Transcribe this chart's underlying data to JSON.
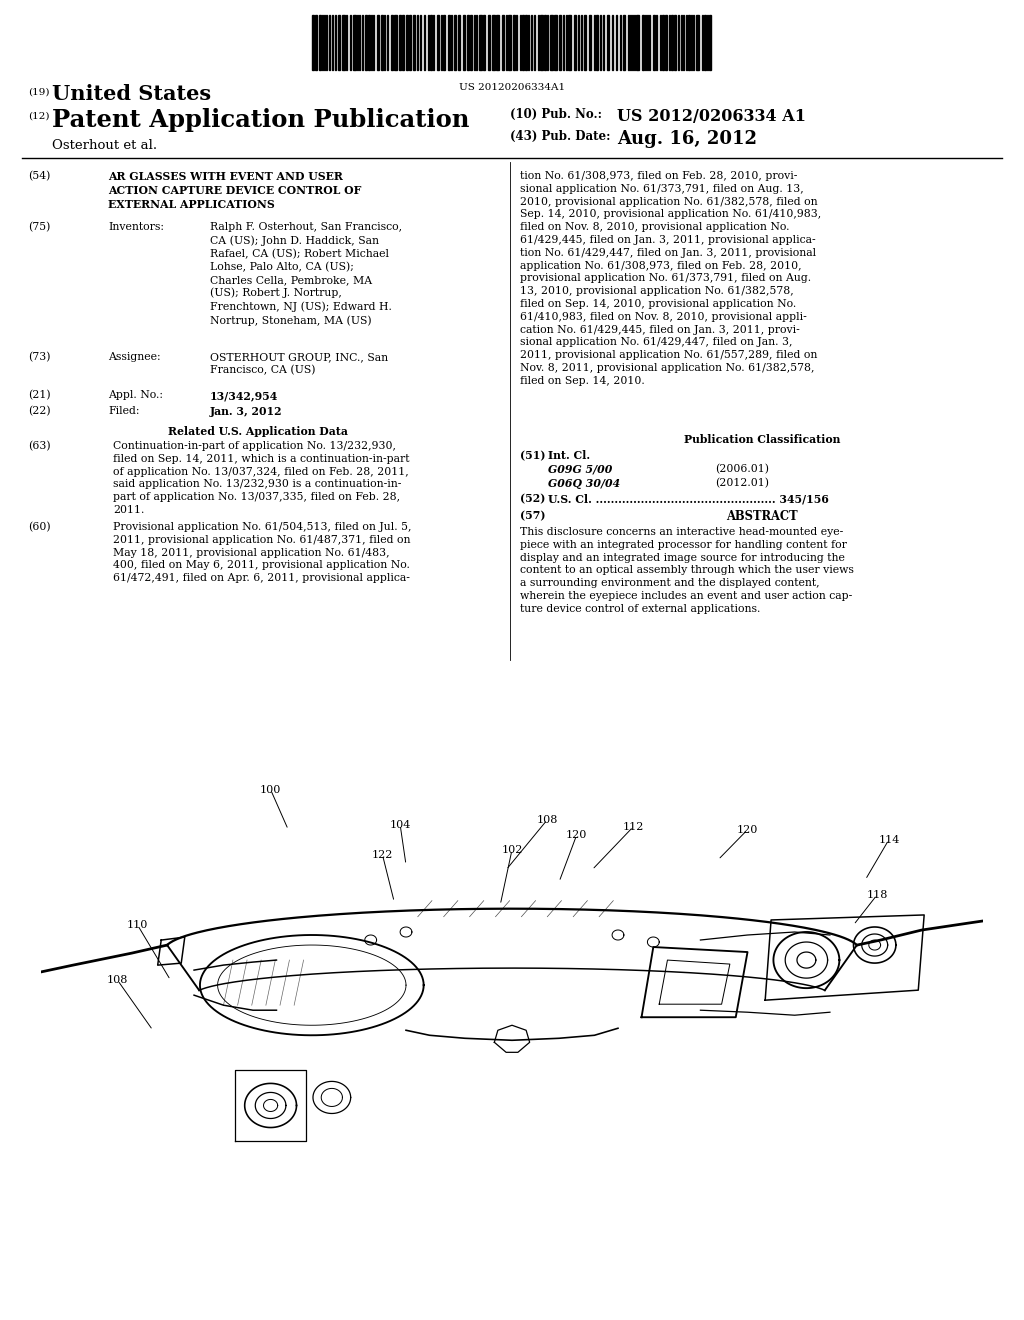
{
  "bg_color": "#ffffff",
  "barcode_text": "US 20120206334A1",
  "header_19_text": "United States",
  "header_12_text": "Patent Application Publication",
  "header_10_label": "(10) Pub. No.:",
  "header_10_value": "US 2012/0206334 A1",
  "header_43_label": "(43) Pub. Date:",
  "header_43_value": "Aug. 16, 2012",
  "assignee_name": "Osterhout et al.",
  "field_54_label": "(54)",
  "field_54_text": "AR GLASSES WITH EVENT AND USER\nACTION CAPTURE DEVICE CONTROL OF\nEXTERNAL APPLICATIONS",
  "field_75_label": "(75)",
  "field_75_sublabel": "Inventors:",
  "field_75_text": "Ralph F. Osterhout, San Francisco,\nCA (US); John D. Haddick, San\nRafael, CA (US); Robert Michael\nLohse, Palo Alto, CA (US);\nCharles Cella, Pembroke, MA\n(US); Robert J. Nortrup,\nFrenchtown, NJ (US); Edward H.\nNortrup, Stoneham, MA (US)",
  "field_73_label": "(73)",
  "field_73_sublabel": "Assignee:",
  "field_73_text": "OSTERHOUT GROUP, INC., San\nFrancisco, CA (US)",
  "field_21_label": "(21)",
  "field_21_sublabel": "Appl. No.:",
  "field_21_text": "13/342,954",
  "field_22_label": "(22)",
  "field_22_sublabel": "Filed:",
  "field_22_text": "Jan. 3, 2012",
  "related_header": "Related U.S. Application Data",
  "field_63_label": "(63)",
  "field_63_text": "Continuation-in-part of application No. 13/232,930,\nfiled on Sep. 14, 2011, which is a continuation-in-part\nof application No. 13/037,324, filed on Feb. 28, 2011,\nsaid application No. 13/232,930 is a continuation-in-\npart of application No. 13/037,335, filed on Feb. 28,\n2011.",
  "field_60_label": "(60)",
  "field_60_text": "Provisional application No. 61/504,513, filed on Jul. 5,\n2011, provisional application No. 61/487,371, filed on\nMay 18, 2011, provisional application No. 61/483,\n400, filed on May 6, 2011, provisional application No.\n61/472,491, filed on Apr. 6, 2011, provisional applica-",
  "right_col_top_text": "tion No. 61/308,973, filed on Feb. 28, 2010, provi-\nsional application No. 61/373,791, filed on Aug. 13,\n2010, provisional application No. 61/382,578, filed on\nSep. 14, 2010, provisional application No. 61/410,983,\nfiled on Nov. 8, 2010, provisional application No.\n61/429,445, filed on Jan. 3, 2011, provisional applica-\ntion No. 61/429,447, filed on Jan. 3, 2011, provisional\napplication No. 61/308,973, filed on Feb. 28, 2010,\nprovisional application No. 61/373,791, filed on Aug.\n13, 2010, provisional application No. 61/382,578,\nfiled on Sep. 14, 2010, provisional application No.\n61/410,983, filed on Nov. 8, 2010, provisional appli-\ncation No. 61/429,445, filed on Jan. 3, 2011, provi-\nsional application No. 61/429,447, filed on Jan. 3,\n2011, provisional application No. 61/557,289, filed on\nNov. 8, 2011, provisional application No. 61/382,578,\nfiled on Sep. 14, 2010.",
  "pub_class_header": "Publication Classification",
  "field_51_label": "(51)",
  "field_51_sublabel": "Int. Cl.",
  "field_51_text1": "G09G 5/00",
  "field_51_date1": "(2006.01)",
  "field_51_text2": "G06Q 30/04",
  "field_51_date2": "(2012.01)",
  "field_52_label": "(52)",
  "field_52_sublabel": "U.S. Cl.",
  "field_52_value": "345/156",
  "field_57_label": "(57)",
  "field_57_sublabel": "ABSTRACT",
  "field_57_text": "This disclosure concerns an interactive head-mounted eye-\npiece with an integrated processor for handling content for\ndisplay and an integrated image source for introducing the\ncontent to an optical assembly through which the user views\na surrounding environment and the displayed content,\nwherein the eyepiece includes an event and user action cap-\nture device control of external applications."
}
